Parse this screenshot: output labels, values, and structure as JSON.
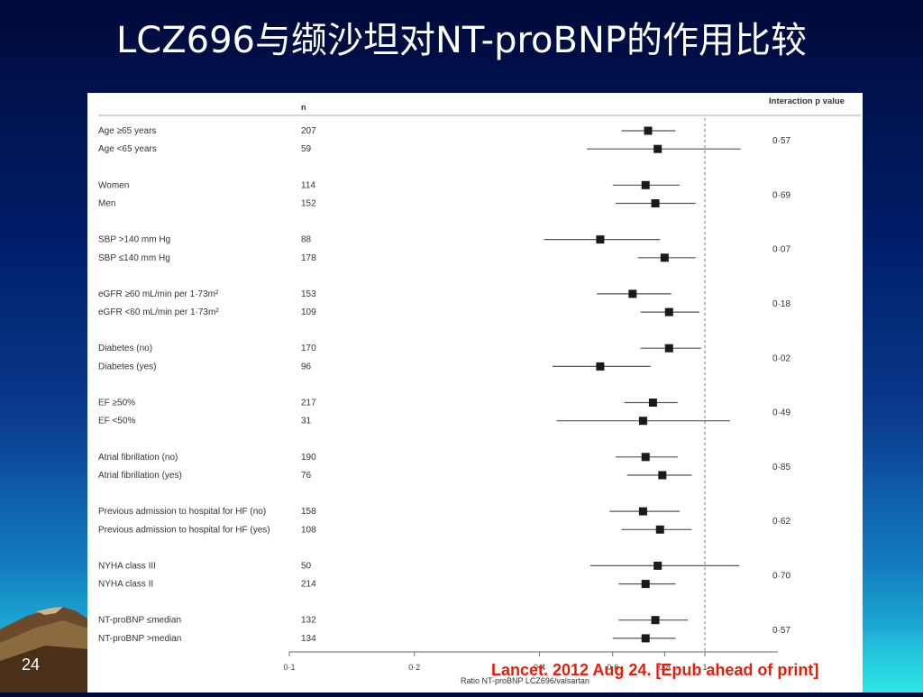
{
  "slide": {
    "title": "LCZ696与缬沙坦对NT-proBNP的作用比较",
    "page_number": "24",
    "citation": "Lancet. 2012 Aug 24. [Epub ahead of print]"
  },
  "colors": {
    "title_text": "#ffffff",
    "citation": "#e81e0a",
    "marker": "#1a1a1a",
    "ci_line": "#555555",
    "reference_line": "#6a8a6a"
  },
  "chart_data": {
    "type": "forest",
    "header_n": "n",
    "header_p": "Interaction p value",
    "xlabel": "Ratio NT-proBNP LCZ696/valsartan",
    "xscale": "log",
    "xlim": [
      0.1,
      1.5
    ],
    "xticks": [
      {
        "value": 0.1,
        "label": "0·1"
      },
      {
        "value": 0.2,
        "label": "0·2"
      },
      {
        "value": 0.4,
        "label": "0·4"
      },
      {
        "value": 0.6,
        "label": "0·6"
      },
      {
        "value": 0.8,
        "label": "0·8"
      },
      {
        "value": 1.0,
        "label": "1"
      }
    ],
    "reference_line": 1.0,
    "groups": [
      {
        "p": "0·57",
        "rows": [
          {
            "label": "Age ≥65 years",
            "n": "207",
            "est": 0.73,
            "lo": 0.63,
            "hi": 0.85
          },
          {
            "label": "Age <65 years",
            "n": "59",
            "est": 0.77,
            "lo": 0.52,
            "hi": 1.22
          }
        ]
      },
      {
        "p": "0·69",
        "rows": [
          {
            "label": "Women",
            "n": "114",
            "est": 0.72,
            "lo": 0.6,
            "hi": 0.87
          },
          {
            "label": "Men",
            "n": "152",
            "est": 0.76,
            "lo": 0.61,
            "hi": 0.95
          }
        ]
      },
      {
        "p": "0·07",
        "rows": [
          {
            "label": "SBP >140 mm Hg",
            "n": "88",
            "est": 0.56,
            "lo": 0.41,
            "hi": 0.78
          },
          {
            "label": "SBP ≤140 mm Hg",
            "n": "178",
            "est": 0.8,
            "lo": 0.69,
            "hi": 0.95
          }
        ]
      },
      {
        "p": "0·18",
        "rows": [
          {
            "label": "eGFR ≥60 mL/min per 1·73m²",
            "n": "153",
            "est": 0.67,
            "lo": 0.55,
            "hi": 0.83
          },
          {
            "label": "eGFR <60 mL/min per 1·73m²",
            "n": "109",
            "est": 0.82,
            "lo": 0.7,
            "hi": 0.97
          }
        ]
      },
      {
        "p": "0·02",
        "rows": [
          {
            "label": "Diabetes (no)",
            "n": "170",
            "est": 0.82,
            "lo": 0.7,
            "hi": 0.98
          },
          {
            "label": "Diabetes (yes)",
            "n": "96",
            "est": 0.56,
            "lo": 0.43,
            "hi": 0.74
          }
        ]
      },
      {
        "p": "0·49",
        "rows": [
          {
            "label": "EF ≥50%",
            "n": "217",
            "est": 0.75,
            "lo": 0.64,
            "hi": 0.86
          },
          {
            "label": "EF <50%",
            "n": "31",
            "est": 0.71,
            "lo": 0.44,
            "hi": 1.15
          }
        ]
      },
      {
        "p": "0·85",
        "rows": [
          {
            "label": "Atrial fibrillation (no)",
            "n": "190",
            "est": 0.72,
            "lo": 0.61,
            "hi": 0.86
          },
          {
            "label": "Atrial fibrillation (yes)",
            "n": "76",
            "est": 0.79,
            "lo": 0.65,
            "hi": 0.93
          }
        ]
      },
      {
        "p": "0·62",
        "rows": [
          {
            "label": "Previous admission to hospital for HF (no)",
            "n": "158",
            "est": 0.71,
            "lo": 0.59,
            "hi": 0.87
          },
          {
            "label": "Previous admission to hospital for HF (yes)",
            "n": "108",
            "est": 0.78,
            "lo": 0.63,
            "hi": 0.93
          }
        ]
      },
      {
        "p": "0·70",
        "rows": [
          {
            "label": "NYHA class III",
            "n": "50",
            "est": 0.77,
            "lo": 0.53,
            "hi": 1.21
          },
          {
            "label": "NYHA class II",
            "n": "214",
            "est": 0.72,
            "lo": 0.62,
            "hi": 0.85
          }
        ]
      },
      {
        "p": "0·57",
        "rows": [
          {
            "label": "NT-proBNP ≤median",
            "n": "132",
            "est": 0.76,
            "lo": 0.62,
            "hi": 0.91
          },
          {
            "label": "NT-proBNP >median",
            "n": "134",
            "est": 0.72,
            "lo": 0.6,
            "hi": 0.85
          }
        ]
      }
    ]
  }
}
